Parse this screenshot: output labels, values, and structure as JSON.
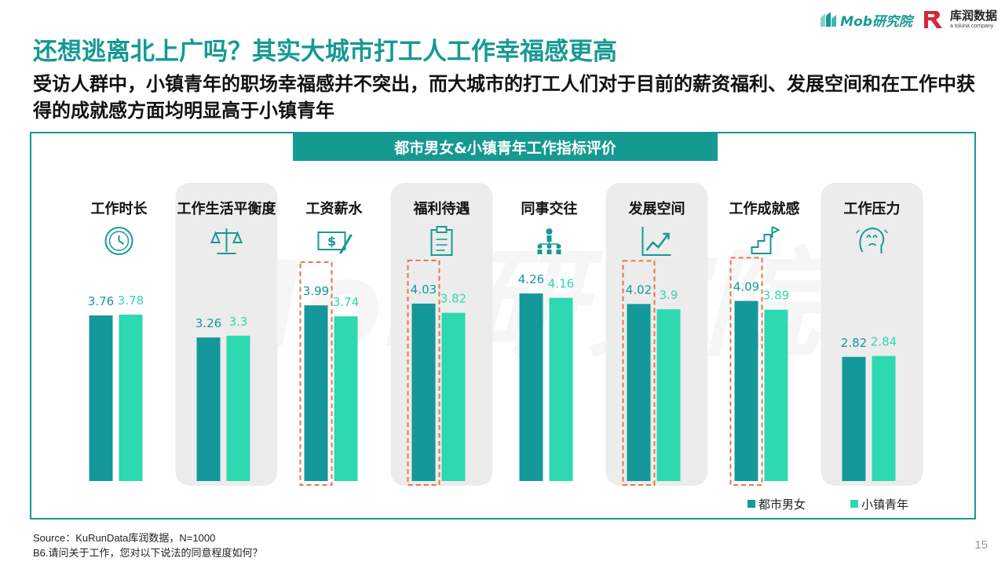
{
  "brand": {
    "mob": "Mob研究院",
    "kr_main": "库润数据",
    "kr_sub": "a toluna company"
  },
  "title": "还想逃离北上广吗？其实大城市打工人工作幸福感更高",
  "subtitle": "受访人群中，小镇青年的职场幸福感并不突出，而大城市的打工人们对于目前的薪资福利、发展空间和在工作中获得的成就感方面均明显高于小镇青年",
  "footer": {
    "source": "Source：KuRunData库润数据，N=1000",
    "question": "B6.请问关于工作，您对以下说法的同意程度如何？"
  },
  "page_number": "15",
  "colors": {
    "brand": "#159a92",
    "series1": "#15989a",
    "series2": "#2ed8b0",
    "panel": "#ececec",
    "highlight": "#e8744a"
  },
  "chart_data": {
    "type": "bar",
    "title": "都市男女&小镇青年工作指标评价",
    "categories": [
      "工作时长",
      "工作生活平衡度",
      "工资薪水",
      "福利待遇",
      "同事交往",
      "发展空间",
      "工作成就感",
      "工作压力"
    ],
    "icons": [
      "clock-icon",
      "scale-icon",
      "money-icon",
      "clipboard-icon",
      "team-icon",
      "growth-chart-icon",
      "achievement-icon",
      "stress-icon"
    ],
    "series": [
      {
        "name": "都市男女",
        "values": [
          3.76,
          3.26,
          3.99,
          4.03,
          4.26,
          4.02,
          4.09,
          2.82
        ],
        "labels": [
          "3.76",
          "3.26",
          "3.99",
          "4.03",
          "4.26",
          "4.02",
          "4.09",
          "2.82"
        ]
      },
      {
        "name": "小镇青年",
        "values": [
          3.78,
          3.3,
          3.74,
          3.82,
          4.16,
          3.9,
          3.89,
          2.84
        ],
        "labels": [
          "3.78",
          "3.3",
          "3.74",
          "3.82",
          "4.16",
          "3.9",
          "3.89",
          "2.84"
        ]
      }
    ],
    "highlighted_categories": [
      "工资薪水",
      "福利待遇",
      "发展空间",
      "工作成就感"
    ],
    "shaded_categories": [
      "工作生活平衡度",
      "福利待遇",
      "发展空间",
      "工作压力"
    ],
    "legend": "bottom-right"
  }
}
